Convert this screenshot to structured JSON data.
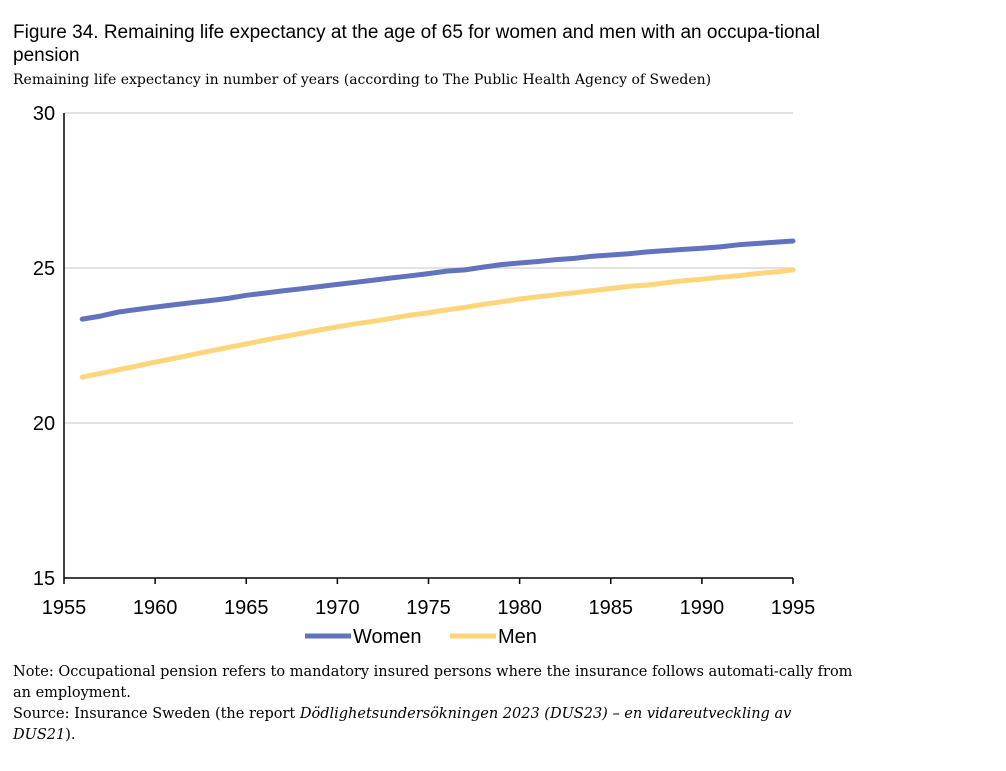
{
  "title": "Figure 34. Remaining life expectancy at the age of 65 for women and men with an occupa-tional pension",
  "subtitle": "Remaining life expectancy in number of years (according to The Public Health Agency of Sweden)",
  "note": "Note: Occupational pension refers to mandatory insured persons where the insurance follows automati-cally from an employment.",
  "source_prefix": "Source: Insurance Sweden (the report ",
  "source_italic": "Dödlighetsundersökningen 2023 (DUS23) – en vidareutveckling av DUS21",
  "source_suffix": ").",
  "chart_data": {
    "type": "line",
    "title": "",
    "xlabel": "",
    "ylabel": "",
    "xlim": [
      1955,
      1995
    ],
    "ylim": [
      15,
      30
    ],
    "x_ticks": [
      1955,
      1960,
      1965,
      1970,
      1975,
      1980,
      1985,
      1990,
      1995
    ],
    "y_ticks": [
      15,
      20,
      25,
      30
    ],
    "grid": "horizontal",
    "legend": "bottom",
    "x": [
      1956,
      1957,
      1958,
      1959,
      1960,
      1961,
      1962,
      1963,
      1964,
      1965,
      1966,
      1967,
      1968,
      1969,
      1970,
      1971,
      1972,
      1973,
      1974,
      1975,
      1976,
      1977,
      1978,
      1979,
      1980,
      1981,
      1982,
      1983,
      1984,
      1985,
      1986,
      1987,
      1988,
      1989,
      1990,
      1991,
      1992,
      1993,
      1994,
      1995
    ],
    "series": [
      {
        "name": "Women",
        "color": "#6272bd",
        "values": [
          23.35,
          23.45,
          23.58,
          23.66,
          23.74,
          23.81,
          23.88,
          23.95,
          24.02,
          24.12,
          24.19,
          24.26,
          24.33,
          24.4,
          24.47,
          24.54,
          24.61,
          24.68,
          24.75,
          24.82,
          24.9,
          24.94,
          25.03,
          25.11,
          25.16,
          25.21,
          25.27,
          25.31,
          25.38,
          25.42,
          25.46,
          25.52,
          25.56,
          25.6,
          25.64,
          25.68,
          25.75,
          25.79,
          25.83,
          25.87
        ]
      },
      {
        "name": "Men",
        "color": "#fdd57a",
        "values": [
          21.48,
          21.6,
          21.72,
          21.84,
          21.96,
          22.08,
          22.2,
          22.32,
          22.44,
          22.55,
          22.67,
          22.78,
          22.89,
          23.0,
          23.1,
          23.2,
          23.28,
          23.38,
          23.48,
          23.55,
          23.65,
          23.73,
          23.83,
          23.91,
          24.0,
          24.07,
          24.14,
          24.2,
          24.27,
          24.34,
          24.41,
          24.45,
          24.52,
          24.59,
          24.64,
          24.7,
          24.75,
          24.82,
          24.87,
          24.94
        ]
      }
    ]
  }
}
